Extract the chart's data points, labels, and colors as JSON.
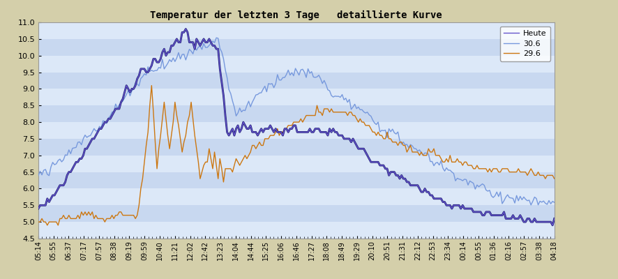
{
  "title": "Temperatur der letzten 3 Tage   detaillierte Kurve",
  "ylim": [
    4.5,
    11.0
  ],
  "yticks": [
    4.5,
    5.0,
    5.5,
    6.0,
    6.5,
    7.0,
    7.5,
    8.0,
    8.5,
    9.0,
    9.5,
    10.0,
    10.5,
    11.0
  ],
  "bg_outer": "#d4cfaa",
  "bg_stripe_colors": [
    "#dce8f8",
    "#c8d8f0"
  ],
  "line_heute_color": "#6655cc",
  "line_heute_dark": "#1a1a6e",
  "line_306_color": "#7799dd",
  "line_296_color": "#cc7711",
  "legend_labels": [
    "Heute",
    "30.6",
    "29.6"
  ],
  "n_points": 288,
  "x_tick_labels": [
    "05:14",
    "05:55",
    "06:37",
    "07:17",
    "07:57",
    "08:38",
    "09:19",
    "09:59",
    "10:40",
    "11:21",
    "12:02",
    "12:42",
    "13:23",
    "14:04",
    "14:44",
    "15:25",
    "16:06",
    "16:46",
    "17:27",
    "18:08",
    "18:49",
    "19:29",
    "20:10",
    "20:51",
    "21:31",
    "22:12",
    "22:53",
    "23:34",
    "00:14",
    "00:55",
    "01:36",
    "02:16",
    "02:57",
    "03:38",
    "04:18"
  ]
}
